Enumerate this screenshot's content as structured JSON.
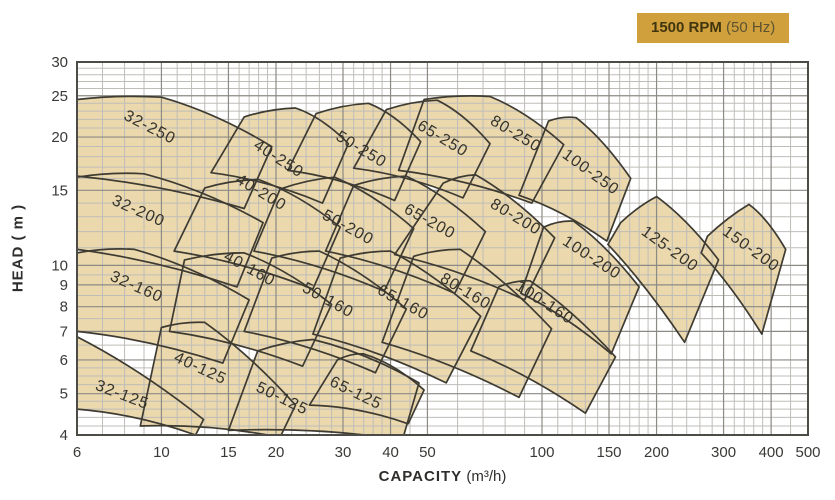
{
  "badge": {
    "bold": "1500 RPM",
    "normal": " (50 Hz)",
    "bg": "#D0A03C"
  },
  "colors": {
    "region_fill": "#EBD8AD",
    "region_outline": "#3E3B32",
    "grid_minor": "#BFBDB8",
    "grid_major": "#8C8A85",
    "frame": "#4D4B46",
    "tick_text": "#3A3937",
    "label_text": "#35332B"
  },
  "chart_data": {
    "type": "area",
    "title": "Pump selection chart 1500 RPM (50 Hz)",
    "xlabel_bold": "CAPACITY",
    "xlabel_unit": " (m³/h)",
    "ylabel": "HEAD ( m )",
    "x_scale": "log",
    "y_scale": "log",
    "xlim": [
      6,
      500
    ],
    "ylim": [
      4,
      30
    ],
    "x_ticks": [
      6,
      10,
      15,
      20,
      30,
      40,
      50,
      100,
      150,
      200,
      300,
      400,
      500
    ],
    "y_ticks": [
      30,
      25,
      20,
      15,
      10,
      9,
      8,
      7,
      6,
      5,
      4
    ],
    "x_minor": [
      7,
      8,
      9,
      11,
      12,
      13,
      14,
      16,
      17,
      18,
      19,
      22,
      24,
      26,
      28,
      32,
      34,
      36,
      38,
      45,
      60,
      70,
      80,
      90,
      110,
      120,
      130,
      140,
      160,
      170,
      180,
      190,
      220,
      240,
      260,
      280,
      320,
      340,
      360,
      380,
      450
    ],
    "y_minor": [
      4.2,
      4.4,
      4.6,
      4.8,
      5.25,
      5.5,
      5.75,
      6.5,
      7.5,
      8.5,
      9.5,
      11,
      12,
      13,
      14,
      16,
      17,
      18,
      19,
      21,
      22,
      23,
      24,
      26,
      27,
      28,
      29
    ],
    "legend_position": "none",
    "grid": true,
    "regions": [
      {
        "name": "32-250",
        "bl": [
          6,
          16.2
        ],
        "br": [
          16.5,
          13.6
        ],
        "tr": [
          19.5,
          19.0
        ],
        "peak": [
          10,
          24.8
        ],
        "tl": [
          6,
          24.5
        ],
        "label": [
          9.2,
          20.6,
          27
        ]
      },
      {
        "name": "40-250",
        "bl": [
          13.5,
          16.5
        ],
        "br": [
          26.5,
          14.0
        ],
        "tr": [
          31,
          19.3
        ],
        "peak": [
          22.5,
          23.4
        ],
        "tl": [
          16.5,
          22.3
        ],
        "label": [
          20,
          17.4,
          33
        ]
      },
      {
        "name": "50-250",
        "bl": [
          21.5,
          16.7
        ],
        "br": [
          41,
          14.2
        ],
        "tr": [
          48,
          19.5
        ],
        "peak": [
          35,
          24.0
        ],
        "tl": [
          25.5,
          22.7
        ],
        "label": [
          33,
          18.3,
          31
        ]
      },
      {
        "name": "65-250",
        "bl": [
          32,
          16.9
        ],
        "br": [
          62,
          14.4
        ],
        "tr": [
          73,
          19.3
        ],
        "peak": [
          53,
          24.4
        ],
        "tl": [
          39,
          23.2
        ],
        "label": [
          54,
          19.4,
          31
        ]
      },
      {
        "name": "80-250",
        "bl": [
          42,
          16.7
        ],
        "br": [
          94,
          14.0
        ],
        "tr": [
          114,
          19.2
        ],
        "peak": [
          73,
          24.9
        ],
        "tl": [
          49,
          24.5
        ],
        "label": [
          84,
          19.9,
          31
        ]
      },
      {
        "name": "100-250",
        "bl": [
          87,
          14.6
        ],
        "br": [
          148,
          11.4
        ],
        "tr": [
          171,
          16.0
        ],
        "peak": [
          123,
          22.2
        ],
        "tl": [
          104,
          21.8
        ],
        "label": [
          132,
          16.2,
          36
        ]
      },
      {
        "name": "32-200",
        "bl": [
          6,
          10.9
        ],
        "br": [
          15.8,
          8.9
        ],
        "tr": [
          18.5,
          12.6
        ],
        "peak": [
          9,
          16.4
        ],
        "tl": [
          6,
          16.1
        ],
        "label": [
          8.6,
          13.1,
          24
        ]
      },
      {
        "name": "40-200",
        "bl": [
          10.8,
          10.8
        ],
        "br": [
          25,
          8.8
        ],
        "tr": [
          29.5,
          12.3
        ],
        "peak": [
          18,
          15.9
        ],
        "tl": [
          13,
          15.2
        ],
        "label": [
          18,
          14.5,
          31
        ]
      },
      {
        "name": "50-200",
        "bl": [
          17.5,
          10.8
        ],
        "br": [
          38.5,
          8.7
        ],
        "tr": [
          46,
          12.2
        ],
        "peak": [
          28.5,
          16.1
        ],
        "tl": [
          20.5,
          15.1
        ],
        "label": [
          30.5,
          12.0,
          29
        ]
      },
      {
        "name": "65-200",
        "bl": [
          27,
          10.8
        ],
        "br": [
          59,
          8.6
        ],
        "tr": [
          71,
          12.0
        ],
        "peak": [
          44,
          16.2
        ],
        "tl": [
          32,
          15.4
        ],
        "label": [
          50,
          12.4,
          29
        ]
      },
      {
        "name": "80-200",
        "bl": [
          41,
          10.6
        ],
        "br": [
          90,
          8.3
        ],
        "tr": [
          108,
          11.6
        ],
        "peak": [
          67,
          16.3
        ],
        "tl": [
          55,
          15.6
        ],
        "label": [
          84,
          12.7,
          31
        ]
      },
      {
        "name": "100-200",
        "bl": [
          88,
          8.6
        ],
        "br": [
          152,
          6.2
        ],
        "tr": [
          180,
          8.9
        ],
        "peak": [
          121,
          12.7
        ],
        "tl": [
          101,
          12.3
        ],
        "label": [
          133,
          10.2,
          33
        ]
      },
      {
        "name": "125-200",
        "bl": [
          149,
          11.2
        ],
        "br": [
          237,
          6.6
        ],
        "tr": [
          291,
          10.3
        ],
        "peak": [
          200,
          14.5
        ],
        "tl": [
          161,
          12.6
        ],
        "label": [
          213,
          10.7,
          36
        ]
      },
      {
        "name": "150-200",
        "bl": [
          262,
          10.7
        ],
        "br": [
          378,
          6.9
        ],
        "tr": [
          437,
          10.9
        ],
        "peak": [
          350,
          13.9
        ],
        "tl": [
          272,
          11.7
        ],
        "label": [
          348,
          10.7,
          36
        ]
      },
      {
        "name": "32-160",
        "bl": [
          6,
          7.0
        ],
        "br": [
          14.5,
          5.9
        ],
        "tr": [
          17,
          8.3
        ],
        "peak": [
          8.5,
          10.9
        ],
        "tl": [
          6,
          10.7
        ],
        "label": [
          8.5,
          8.7,
          24
        ]
      },
      {
        "name": "40-160",
        "bl": [
          10.5,
          7.0
        ],
        "br": [
          23.5,
          5.8
        ],
        "tr": [
          28,
          8.1
        ],
        "peak": [
          16.5,
          10.7
        ],
        "tl": [
          11.5,
          10.3
        ],
        "label": [
          16.8,
          9.6,
          29
        ]
      },
      {
        "name": "50-160",
        "bl": [
          16.5,
          7.0
        ],
        "br": [
          36.5,
          5.6
        ],
        "tr": [
          44,
          7.9
        ],
        "peak": [
          26,
          10.8
        ],
        "tl": [
          19.5,
          10.4
        ],
        "label": [
          27,
          8.1,
          29
        ]
      },
      {
        "name": "65-160",
        "bl": [
          25,
          6.9
        ],
        "br": [
          56,
          5.3
        ],
        "tr": [
          69,
          7.6
        ],
        "peak": [
          40,
          10.8
        ],
        "tl": [
          29.5,
          10.4
        ],
        "label": [
          42.5,
          8.0,
          29
        ]
      },
      {
        "name": "80-160",
        "bl": [
          38,
          6.6
        ],
        "br": [
          87,
          4.9
        ],
        "tr": [
          106,
          7.1
        ],
        "peak": [
          61,
          10.9
        ],
        "tl": [
          46,
          10.5
        ],
        "label": [
          62,
          8.5,
          31
        ]
      },
      {
        "name": "100-160",
        "bl": [
          65,
          6.3
        ],
        "br": [
          130,
          4.5
        ],
        "tr": [
          156,
          6.1
        ],
        "peak": [
          93,
          9.2
        ],
        "tl": [
          77,
          8.9
        ],
        "label": [
          100,
          8.0,
          33
        ]
      },
      {
        "name": "32-125",
        "bl": [
          6,
          4.6
        ],
        "br": [
          12.3,
          4.0
        ],
        "tr": [
          12.9,
          4.35
        ],
        "tl": [
          6,
          6.8
        ],
        "label": [
          7.8,
          4.85,
          21
        ]
      },
      {
        "name": "40-125",
        "bl": [
          8.8,
          4.2
        ],
        "br": [
          20.5,
          3.95
        ],
        "tr": [
          22.5,
          4.7
        ],
        "peak": [
          13,
          7.35
        ],
        "tl": [
          10,
          7.15
        ],
        "label": [
          12.5,
          5.6,
          25
        ]
      },
      {
        "name": "50-125",
        "bl": [
          15,
          4.1
        ],
        "br": [
          43,
          3.9
        ],
        "tr": [
          47.5,
          5.3
        ],
        "peak": [
          25,
          6.7
        ],
        "tl": [
          17.9,
          6.3
        ],
        "label": [
          20.5,
          4.76,
          26
        ]
      },
      {
        "name": "65-125",
        "bl": [
          24.5,
          4.7
        ],
        "br": [
          44.5,
          4.25
        ],
        "tr": [
          49,
          5.1
        ],
        "peak": [
          34,
          6.2
        ],
        "tl": [
          29,
          6.0
        ],
        "label": [
          32,
          4.9,
          26
        ]
      }
    ]
  }
}
